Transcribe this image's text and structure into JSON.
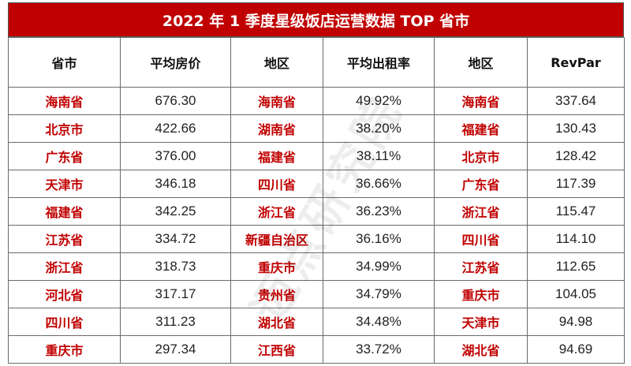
{
  "title": "2022 年 1 季度星级饭店运营数据 TOP 省市",
  "headers": [
    "省市",
    "平均房价",
    "地区",
    "平均出租率",
    "地区",
    "RevPar"
  ],
  "rows": [
    [
      "海南省",
      "676.30",
      "海南省",
      "49.92%",
      "海南省",
      "337.64"
    ],
    [
      "北京市",
      "422.66",
      "湖南省",
      "38.20%",
      "福建省",
      "130.43"
    ],
    [
      "广东省",
      "376.00",
      "福建省",
      "38.11%",
      "北京市",
      "128.42"
    ],
    [
      "天津市",
      "346.18",
      "四川省",
      "36.66%",
      "广东省",
      "117.39"
    ],
    [
      "福建省",
      "342.25",
      "浙江省",
      "36.23%",
      "浙江省",
      "115.47"
    ],
    [
      "江苏省",
      "334.72",
      "新疆自治区",
      "36.16%",
      "四川省",
      "114.10"
    ],
    [
      "浙江省",
      "318.73",
      "重庆市",
      "34.99%",
      "江苏省",
      "112.65"
    ],
    [
      "河北省",
      "317.17",
      "贵州省",
      "34.79%",
      "重庆市",
      "104.05"
    ],
    [
      "四川省",
      "311.23",
      "湖北省",
      "34.48%",
      "天津市",
      "94.98"
    ],
    [
      "重庆市",
      "297.34",
      "江西省",
      "33.72%",
      "湖北省",
      "94.69"
    ]
  ],
  "watermark": "迈点研究院",
  "colors": {
    "title_bg": "#c00000",
    "name_text": "#c00000"
  }
}
